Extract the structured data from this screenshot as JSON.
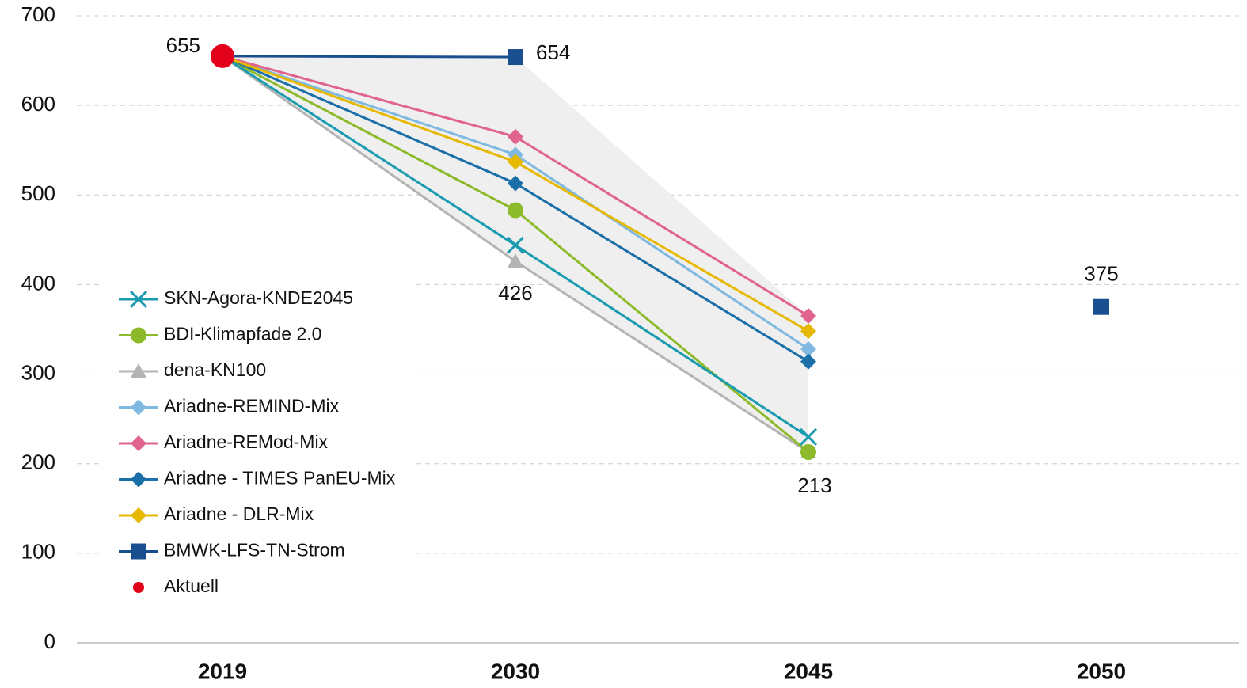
{
  "chart_data": {
    "type": "line",
    "categories": [
      "2019",
      "2030",
      "2045",
      "2050"
    ],
    "ylim": [
      0,
      700
    ],
    "yticks": [
      0,
      100,
      200,
      300,
      400,
      500,
      600,
      700
    ],
    "grid": true,
    "legend": "left",
    "series": [
      {
        "name": "SKN-Agora-KNDE2045",
        "color": "#1a9bb0",
        "marker": "x",
        "values": [
          655,
          444,
          230,
          null
        ]
      },
      {
        "name": "BDI-Klimapfade 2.0",
        "color": "#8dba2a",
        "marker": "circle",
        "values": [
          655,
          483,
          213,
          null
        ]
      },
      {
        "name": "dena-KN100",
        "color": "#b4b4b4",
        "marker": "triangle",
        "values": [
          655,
          426,
          213,
          null
        ],
        "labeled": [
          1,
          2
        ]
      },
      {
        "name": "Ariadne-REMIND-Mix",
        "color": "#7fb8e0",
        "marker": "diamond",
        "values": [
          655,
          545,
          328,
          null
        ]
      },
      {
        "name": "Ariadne-REMod-Mix",
        "color": "#e0648e",
        "marker": "diamond",
        "values": [
          655,
          565,
          365,
          null
        ]
      },
      {
        "name": "Ariadne - TIMES PanEU-Mix",
        "color": "#1a6fa8",
        "marker": "diamond",
        "values": [
          655,
          513,
          314,
          null
        ]
      },
      {
        "name": "Ariadne - DLR-Mix",
        "color": "#e6b800",
        "marker": "diamond",
        "values": [
          655,
          537,
          348,
          null
        ]
      },
      {
        "name": "BMWK-LFS-TN-Strom",
        "color": "#1a4f8f",
        "marker": "square",
        "values": [
          655,
          654,
          null,
          375
        ],
        "labeled": [
          1,
          3
        ]
      },
      {
        "name": "Aktuell",
        "color": "#e2001a",
        "marker": "dot",
        "values": [
          655,
          null,
          null,
          null
        ],
        "labeled": [
          0
        ]
      }
    ]
  }
}
